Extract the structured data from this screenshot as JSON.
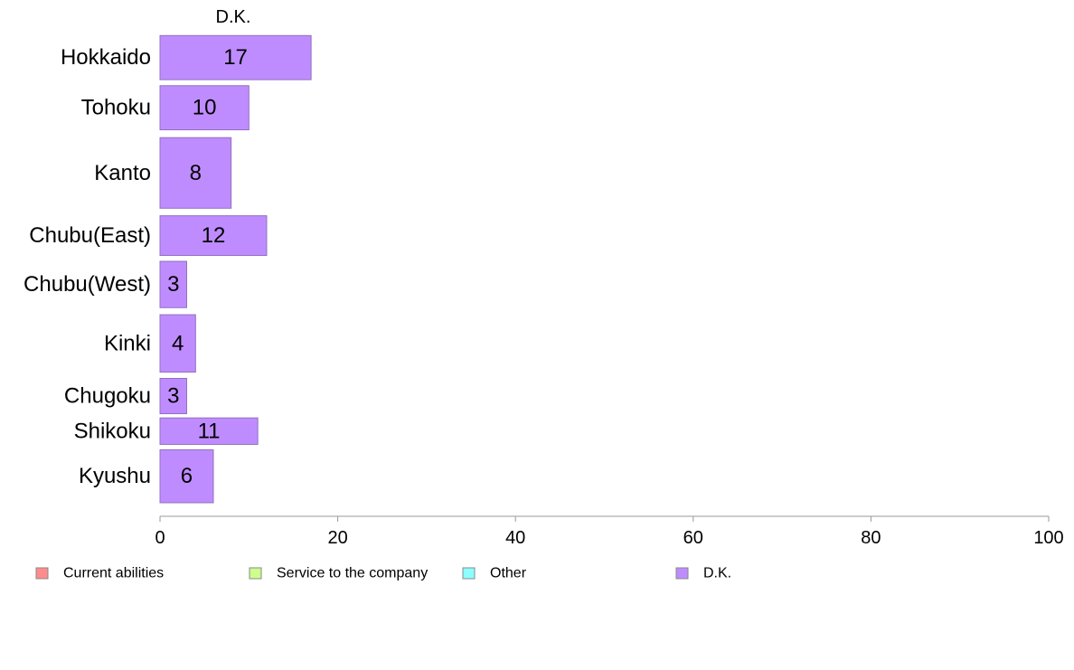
{
  "chart_data": {
    "type": "bar",
    "orientation": "horizontal",
    "stacked": true,
    "segment_header": "D.K.",
    "categories": [
      "Hokkaido",
      "Tohoku",
      "Kanto",
      "Chubu(East)",
      "Chubu(West)",
      "Kinki",
      "Chugoku",
      "Shikoku",
      "Kyushu"
    ],
    "series": [
      {
        "name": "Current abilities",
        "color": "#ff8c8c",
        "values": [
          0,
          0,
          0,
          0,
          0,
          0,
          0,
          0,
          0
        ]
      },
      {
        "name": "Service to the company",
        "color": "#ccff8c",
        "values": [
          0,
          0,
          0,
          0,
          0,
          0,
          0,
          0,
          0
        ]
      },
      {
        "name": "Other",
        "color": "#8cffff",
        "values": [
          0,
          0,
          0,
          0,
          0,
          0,
          0,
          0,
          0
        ]
      },
      {
        "name": "D.K.",
        "color": "#bf8cff",
        "values": [
          17,
          10,
          8,
          12,
          3,
          4,
          3,
          11,
          6
        ]
      }
    ],
    "data_labels": [
      "17",
      "10",
      "8",
      "12",
      "3",
      "4",
      "3",
      "11",
      "6"
    ],
    "category_weights": [
      1,
      1,
      1.6,
      0.9,
      1.05,
      1.3,
      0.8,
      0.6,
      1.2
    ],
    "xlim": [
      0,
      100
    ],
    "xticks": [
      0,
      20,
      40,
      60,
      80,
      100
    ],
    "grid": false,
    "legend_position": "bottom"
  }
}
